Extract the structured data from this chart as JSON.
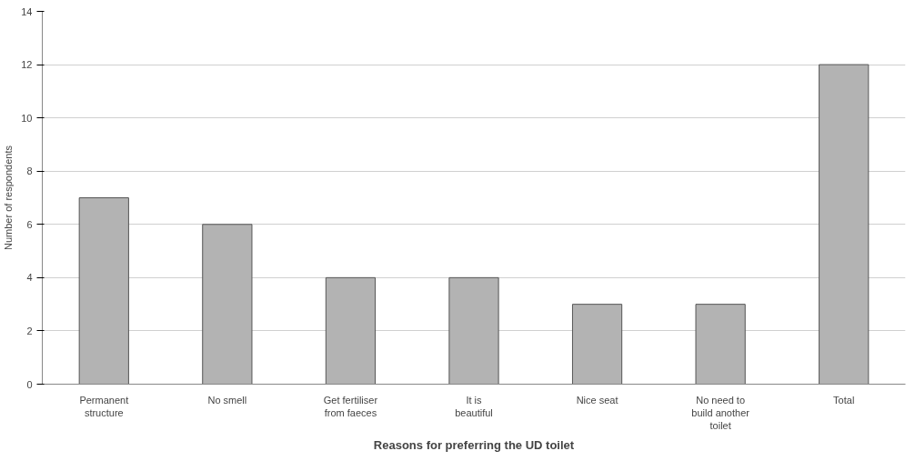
{
  "chart_data": {
    "type": "bar",
    "xlabel": "Reasons for preferring the UD toilet",
    "ylabel": "Number of respondents",
    "categories": [
      "Permanent structure",
      "No smell",
      "Get fertiliser from faeces",
      "It is beautiful",
      "Nice seat",
      "No need to build another toilet",
      "Total"
    ],
    "values": [
      7,
      6,
      4,
      4,
      3,
      3,
      12
    ],
    "color": "#b3b3b3",
    "ylim": [
      0,
      14
    ],
    "yticks": [
      0,
      2,
      4,
      6,
      8,
      10,
      12,
      14
    ],
    "grid": "y"
  }
}
